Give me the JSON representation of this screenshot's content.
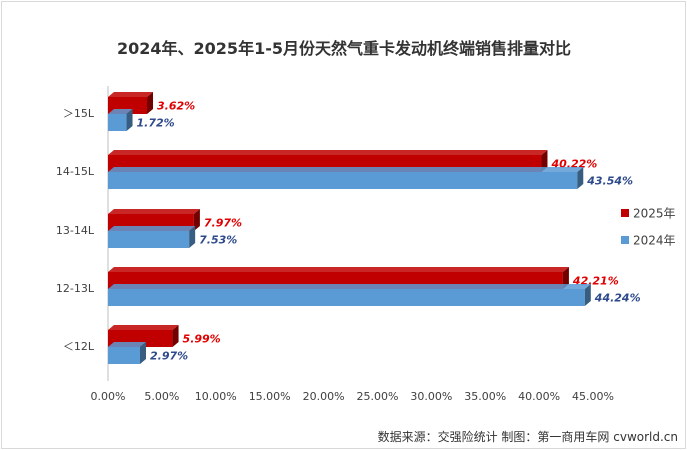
{
  "chart_data": {
    "type": "bar",
    "orientation": "horizontal",
    "title": "2024年、2025年1-5月份天然气重卡发动机终端销售排量对比",
    "categories": [
      "＞15L",
      "14-15L",
      "13-14L",
      "12-13L",
      "＜12L"
    ],
    "series": [
      {
        "name": "2025年",
        "color": "#c00000",
        "label_color": "#e00000",
        "values": [
          3.62,
          40.22,
          7.97,
          42.21,
          5.99
        ],
        "labels": [
          "3.62%",
          "40.22%",
          "7.97%",
          "42.21%",
          "5.99%"
        ]
      },
      {
        "name": "2024年",
        "color": "#5b9bd5",
        "label_color": "#2e4a8c",
        "values": [
          1.72,
          43.54,
          7.53,
          44.24,
          2.97
        ],
        "labels": [
          "1.72%",
          "43.54%",
          "7.53%",
          "44.24%",
          "2.97%"
        ]
      }
    ],
    "x_ticks": [
      0,
      5,
      10,
      15,
      20,
      25,
      30,
      35,
      40,
      45
    ],
    "x_tick_labels": [
      "0.00%",
      "5.00%",
      "10.00%",
      "15.00%",
      "20.00%",
      "25.00%",
      "30.00%",
      "35.00%",
      "40.00%",
      "45.00%"
    ],
    "xlim": [
      0,
      45
    ],
    "grid": false,
    "legend_position": "right",
    "legend_order": [
      "2025年",
      "2024年"
    ]
  },
  "footer": {
    "source": "数据来源：交强险统计    制图：第一商用车网 cvworld.cn"
  }
}
